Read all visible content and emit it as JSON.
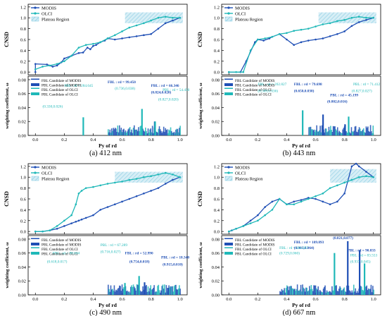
{
  "figure": {
    "panel_labels": [
      "(a) 412 nm",
      "(b) 443 nm",
      "(c) 490 nm",
      "(d) 667 nm"
    ]
  },
  "colors": {
    "modis": "#1f4fb5",
    "olci": "#1fb8b8",
    "plateau_fill": "#d3ecf5",
    "plateau_hatch": "#7ec8e0"
  },
  "axes_text": {
    "top_ylabel": "CNSD",
    "bottom_ylabel": "weighting coefficient, ω",
    "xlabel": "Py of rd",
    "top_yticks": [
      "0.0",
      "0.2",
      "0.4",
      "0.6",
      "0.8",
      "1.0",
      "1.2"
    ],
    "bottom_yticks": [
      "0.00",
      "0.02",
      "0.04",
      "0.06",
      "0.08"
    ],
    "xticks": [
      "0.0",
      "0.2",
      "0.4",
      "0.6",
      "0.8",
      "1.0"
    ],
    "legend_top": [
      "MODIS",
      "OLCI",
      "Plateau Region"
    ],
    "legend_bottom": [
      "FBL Candidate of MODIS",
      "PBL Candidate of MODIS",
      "FBL Candidate of OLCI",
      "PBL Candidate of OLCI"
    ]
  },
  "chart_data": [
    {
      "type": "line",
      "panel": "(a) 412 nm",
      "top": {
        "ylim": [
          -0.05,
          1.25
        ],
        "xlim": [
          -0.05,
          1.05
        ],
        "plateau": {
          "x": [
            0.62,
            1.02
          ],
          "y": [
            0.9,
            1.1
          ]
        },
        "series": [
          {
            "name": "MODIS",
            "color": "#1f4fb5",
            "x": [
              0.0,
              0.0,
              0.08,
              0.12,
              0.15,
              0.18,
              0.2,
              0.25,
              0.3,
              0.33,
              0.36,
              0.38,
              0.4,
              0.42,
              0.45,
              0.48,
              0.5,
              0.55,
              0.6,
              0.65,
              0.7,
              0.75,
              0.8,
              0.85,
              0.9,
              0.95,
              1.0
            ],
            "y": [
              0.0,
              0.15,
              0.14,
              0.1,
              0.12,
              0.18,
              0.25,
              0.3,
              0.35,
              0.36,
              0.45,
              0.42,
              0.48,
              0.5,
              0.55,
              0.58,
              0.62,
              0.6,
              0.62,
              0.64,
              0.66,
              0.68,
              0.7,
              0.8,
              0.9,
              0.95,
              1.0
            ]
          },
          {
            "name": "OLCI",
            "color": "#1fb8b8",
            "x": [
              0.0,
              0.05,
              0.1,
              0.15,
              0.2,
              0.25,
              0.3,
              0.35,
              0.4,
              0.45,
              0.5,
              0.55,
              0.6,
              0.65,
              0.7,
              0.75,
              0.8,
              0.85,
              0.9,
              0.95,
              1.0
            ],
            "y": [
              0.05,
              0.1,
              0.12,
              0.15,
              0.2,
              0.3,
              0.45,
              0.5,
              0.52,
              0.55,
              0.62,
              0.68,
              0.75,
              0.82,
              0.86,
              0.9,
              0.95,
              1.0,
              1.02,
              1.0,
              1.0
            ]
          }
        ]
      },
      "bottom": {
        "ylim": [
          0.0,
          0.085
        ],
        "annotations": [
          {
            "text": "FBL : rd = 99.450",
            "color": "#1f4fb5",
            "x": 0.5,
            "y": 0.075
          },
          {
            "text": "(0.736,0.038)",
            "color": "#1fb8b8",
            "x": 0.55,
            "y": 0.066
          },
          {
            "text": "FBL : rd = 284.645",
            "color": "#1fb8b8",
            "x": 0.2,
            "y": 0.07
          },
          {
            "text": "(0.330,0.026)",
            "color": "#1fb8b8",
            "x": 0.05,
            "y": 0.04
          },
          {
            "text": "PBL : rd = 66.346",
            "color": "#1f4fb5",
            "x": 0.8,
            "y": 0.07
          },
          {
            "text": "(0.824,0.020)",
            "color": "#1f4fb5",
            "x": 0.8,
            "y": 0.06
          },
          {
            "text": "PBL : rd = 54.450",
            "color": "#1fb8b8",
            "x": 0.88,
            "y": 0.064
          },
          {
            "text": "(0.827,0.020)",
            "color": "#1fb8b8",
            "x": 0.85,
            "y": 0.05
          }
        ]
      }
    },
    {
      "type": "line",
      "panel": "(b) 443 nm",
      "top": {
        "ylim": [
          -0.05,
          1.25
        ],
        "xlim": [
          -0.05,
          1.05
        ],
        "plateau": {
          "x": [
            0.62,
            1.02
          ],
          "y": [
            0.9,
            1.1
          ]
        },
        "series": [
          {
            "name": "MODIS",
            "color": "#1f4fb5",
            "x": [
              0.0,
              0.08,
              0.12,
              0.18,
              0.2,
              0.24,
              0.28,
              0.3,
              0.35,
              0.4,
              0.45,
              0.5,
              0.55,
              0.6,
              0.65,
              0.7,
              0.75,
              0.8,
              0.85,
              0.9,
              0.95,
              1.0
            ],
            "y": [
              0.0,
              0.0,
              0.2,
              0.55,
              0.6,
              0.58,
              0.62,
              0.65,
              0.7,
              0.6,
              0.5,
              0.55,
              0.58,
              0.6,
              0.62,
              0.66,
              0.7,
              0.75,
              0.85,
              0.92,
              0.96,
              1.0
            ]
          },
          {
            "name": "OLCI",
            "color": "#1fb8b8",
            "x": [
              0.0,
              0.05,
              0.1,
              0.15,
              0.2,
              0.25,
              0.3,
              0.35,
              0.4,
              0.45,
              0.5,
              0.55,
              0.6,
              0.65,
              0.7,
              0.75,
              0.8,
              0.85,
              0.9,
              0.95,
              1.0
            ],
            "y": [
              0.0,
              0.0,
              0.0,
              0.4,
              0.6,
              0.62,
              0.65,
              0.7,
              0.72,
              0.76,
              0.78,
              0.8,
              0.84,
              0.88,
              0.9,
              0.94,
              0.96,
              1.0,
              1.02,
              1.0,
              1.0
            ]
          }
        ]
      },
      "bottom": {
        "ylim": [
          0.0,
          0.085
        ],
        "annotations": [
          {
            "text": "FBL : rd = 202.827",
            "color": "#1fb8b8",
            "x": 0.2,
            "y": 0.072
          },
          {
            "text": "(0.509,0.036)",
            "color": "#1fb8b8",
            "x": 0.2,
            "y": 0.062
          },
          {
            "text": "FBL : rd = 79.698",
            "color": "#1f4fb5",
            "x": 0.45,
            "y": 0.072
          },
          {
            "text": "(0.650,0.030)",
            "color": "#1f4fb5",
            "x": 0.45,
            "y": 0.062
          },
          {
            "text": "PBL : rd = 45.199",
            "color": "#1f4fb5",
            "x": 0.7,
            "y": 0.056
          },
          {
            "text": "(0.802,0.016)",
            "color": "#1f4fb5",
            "x": 0.68,
            "y": 0.047
          },
          {
            "text": "PBL : rd = 71.412",
            "color": "#1fb8b8",
            "x": 0.86,
            "y": 0.072
          },
          {
            "text": "(0.827,0.027)",
            "color": "#1fb8b8",
            "x": 0.85,
            "y": 0.062
          }
        ]
      }
    },
    {
      "type": "line",
      "panel": "(c) 490 nm",
      "top": {
        "ylim": [
          -0.05,
          1.25
        ],
        "xlim": [
          -0.05,
          1.05
        ],
        "plateau": {
          "x": [
            0.55,
            1.02
          ],
          "y": [
            0.9,
            1.1
          ]
        },
        "series": [
          {
            "name": "MODIS",
            "color": "#1f4fb5",
            "x": [
              0.0,
              0.05,
              0.1,
              0.15,
              0.2,
              0.25,
              0.28,
              0.3,
              0.32,
              0.35,
              0.4,
              0.45,
              0.5,
              0.55,
              0.6,
              0.65,
              0.7,
              0.75,
              0.8,
              0.85,
              0.9,
              0.95,
              1.0
            ],
            "y": [
              0.0,
              0.0,
              0.02,
              0.05,
              0.1,
              0.15,
              0.18,
              0.2,
              0.22,
              0.25,
              0.3,
              0.4,
              0.45,
              0.5,
              0.55,
              0.6,
              0.65,
              0.7,
              0.75,
              0.8,
              0.88,
              0.95,
              1.0
            ]
          },
          {
            "name": "OLCI",
            "color": "#1fb8b8",
            "x": [
              0.0,
              0.05,
              0.1,
              0.15,
              0.2,
              0.25,
              0.28,
              0.3,
              0.32,
              0.35,
              0.4,
              0.45,
              0.5,
              0.55,
              0.6,
              0.65,
              0.7,
              0.75,
              0.8,
              0.85,
              0.9,
              0.95,
              1.0
            ],
            "y": [
              0.0,
              0.0,
              0.02,
              0.1,
              0.2,
              0.3,
              0.5,
              0.7,
              0.75,
              0.8,
              0.82,
              0.85,
              0.88,
              0.9,
              0.92,
              0.95,
              0.97,
              1.0,
              1.02,
              1.05,
              1.08,
              1.05,
              1.0
            ]
          }
        ]
      },
      "bottom": {
        "ylim": [
          0.0,
          0.085
        ],
        "annotations": [
          {
            "text": "PBL : rd = 67.289",
            "color": "#1fb8b8",
            "x": 0.45,
            "y": 0.07
          },
          {
            "text": "(0.716,0.027)",
            "color": "#1fb8b8",
            "x": 0.45,
            "y": 0.06
          },
          {
            "text": "FBL : rd = 98.604",
            "color": "#1fb8b8",
            "x": 0.12,
            "y": 0.058
          },
          {
            "text": "(0.618,0.017)",
            "color": "#1fb8b8",
            "x": 0.08,
            "y": 0.046
          },
          {
            "text": "FBL : rd = 52.990",
            "color": "#1f4fb5",
            "x": 0.62,
            "y": 0.058
          },
          {
            "text": "(0.754,0.018)",
            "color": "#1f4fb5",
            "x": 0.65,
            "y": 0.046
          },
          {
            "text": "PBL : rd = 18.340",
            "color": "#1f4fb5",
            "x": 0.87,
            "y": 0.052
          },
          {
            "text": "(0.915,0.010)",
            "color": "#1f4fb5",
            "x": 0.88,
            "y": 0.042
          }
        ]
      }
    },
    {
      "type": "line",
      "panel": "(d) 667 nm",
      "top": {
        "ylim": [
          -0.05,
          1.25
        ],
        "xlim": [
          -0.05,
          1.05
        ],
        "plateau": {
          "x": [
            0.7,
            1.02
          ],
          "y": [
            0.9,
            1.15
          ]
        },
        "series": [
          {
            "name": "MODIS",
            "color": "#1f4fb5",
            "x": [
              0.0,
              0.02,
              0.05,
              0.1,
              0.15,
              0.2,
              0.25,
              0.3,
              0.35,
              0.4,
              0.45,
              0.5,
              0.55,
              0.6,
              0.65,
              0.7,
              0.75,
              0.8,
              0.85,
              0.88,
              0.9,
              0.95,
              1.0
            ],
            "y": [
              0.0,
              0.02,
              0.05,
              0.1,
              0.2,
              0.3,
              0.45,
              0.55,
              0.6,
              0.5,
              0.55,
              0.58,
              0.62,
              0.6,
              0.55,
              0.5,
              0.55,
              0.7,
              1.2,
              1.25,
              1.2,
              1.1,
              1.0
            ]
          },
          {
            "name": "OLCI",
            "color": "#1fb8b8",
            "x": [
              0.0,
              0.05,
              0.1,
              0.15,
              0.2,
              0.25,
              0.3,
              0.35,
              0.4,
              0.45,
              0.5,
              0.55,
              0.6,
              0.65,
              0.7,
              0.75,
              0.8,
              0.85,
              0.9,
              0.95,
              1.0
            ],
            "y": [
              0.0,
              0.05,
              0.1,
              0.15,
              0.2,
              0.3,
              0.4,
              0.6,
              0.5,
              0.5,
              0.55,
              0.6,
              0.65,
              0.7,
              0.8,
              0.85,
              0.9,
              0.95,
              1.0,
              1.02,
              1.0
            ]
          }
        ]
      },
      "bottom": {
        "ylim": [
          0.0,
          0.085
        ],
        "annotations": [
          {
            "text": "FBL : rd = 109.893",
            "color": "#1f4fb5",
            "x": 0.45,
            "y": 0.074
          },
          {
            "text": "(0.903,0.064)",
            "color": "#1f4fb5",
            "x": 0.45,
            "y": 0.066
          },
          {
            "text": "FBL : rd = 281.657",
            "color": "#1fb8b8",
            "x": 0.35,
            "y": 0.066
          },
          {
            "text": "(0.729,0.060)",
            "color": "#1fb8b8",
            "x": 0.35,
            "y": 0.058
          },
          {
            "text": "(0.821,0.077)",
            "color": "#1f4fb5",
            "x": 0.72,
            "y": 0.08
          },
          {
            "text": "PBL : rd = 90.833",
            "color": "#1f4fb5",
            "x": 0.82,
            "y": 0.062
          },
          {
            "text": "PBL : rd = 83.553",
            "color": "#1fb8b8",
            "x": 0.84,
            "y": 0.055
          },
          {
            "text": "(0.937,0.045)",
            "color": "#1fb8b8",
            "x": 0.84,
            "y": 0.046
          }
        ]
      }
    }
  ]
}
